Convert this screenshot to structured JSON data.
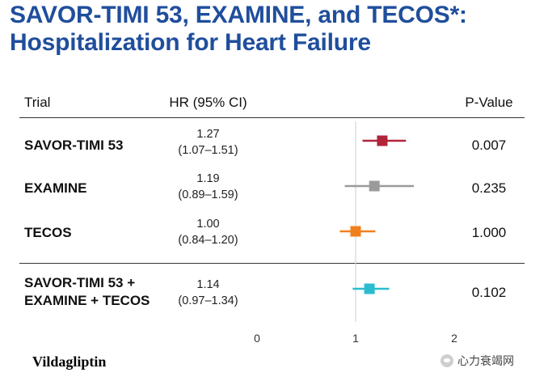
{
  "title": {
    "line1": "SAVOR-TIMI 53, EXAMINE, and TECOS*:",
    "line2": "Hospitalization for Heart Failure"
  },
  "headers": {
    "trial": "Trial",
    "hr": "HR  (95% CI)",
    "pvalue": "P-Value"
  },
  "footnote": "Vildagliptin",
  "watermark": {
    "icon": "wechat-icon",
    "text": "心力衰竭网"
  },
  "chart_data": {
    "type": "forest",
    "title": "Hospitalization for Heart Failure",
    "xlim": [
      0,
      2
    ],
    "xticks": [
      "0",
      "1",
      "2"
    ],
    "reference_line": 1,
    "rows": [
      {
        "trial": "SAVOR-TIMI 53",
        "hr": 1.27,
        "lo": 1.07,
        "hi": 1.51,
        "hr_text": "1.27",
        "ci_text": "(1.07–1.51)",
        "p": "0.007",
        "color": "#b0243a"
      },
      {
        "trial": "EXAMINE",
        "hr": 1.19,
        "lo": 0.89,
        "hi": 1.59,
        "hr_text": "1.19",
        "ci_text": "(0.89–1.59)",
        "p": "0.235",
        "color": "#9b9b9b"
      },
      {
        "trial": "TECOS",
        "hr": 1.0,
        "lo": 0.84,
        "hi": 1.2,
        "hr_text": "1.00",
        "ci_text": "(0.84–1.20)",
        "p": "1.000",
        "color": "#f0801d"
      },
      {
        "trial": "SAVOR-TIMI 53 +",
        "trial_line2": "EXAMINE + TECOS",
        "hr": 1.14,
        "lo": 0.97,
        "hi": 1.34,
        "hr_text": "1.14",
        "ci_text": "(0.97–1.34)",
        "p": "0.102",
        "color": "#2bbcd0"
      }
    ]
  }
}
